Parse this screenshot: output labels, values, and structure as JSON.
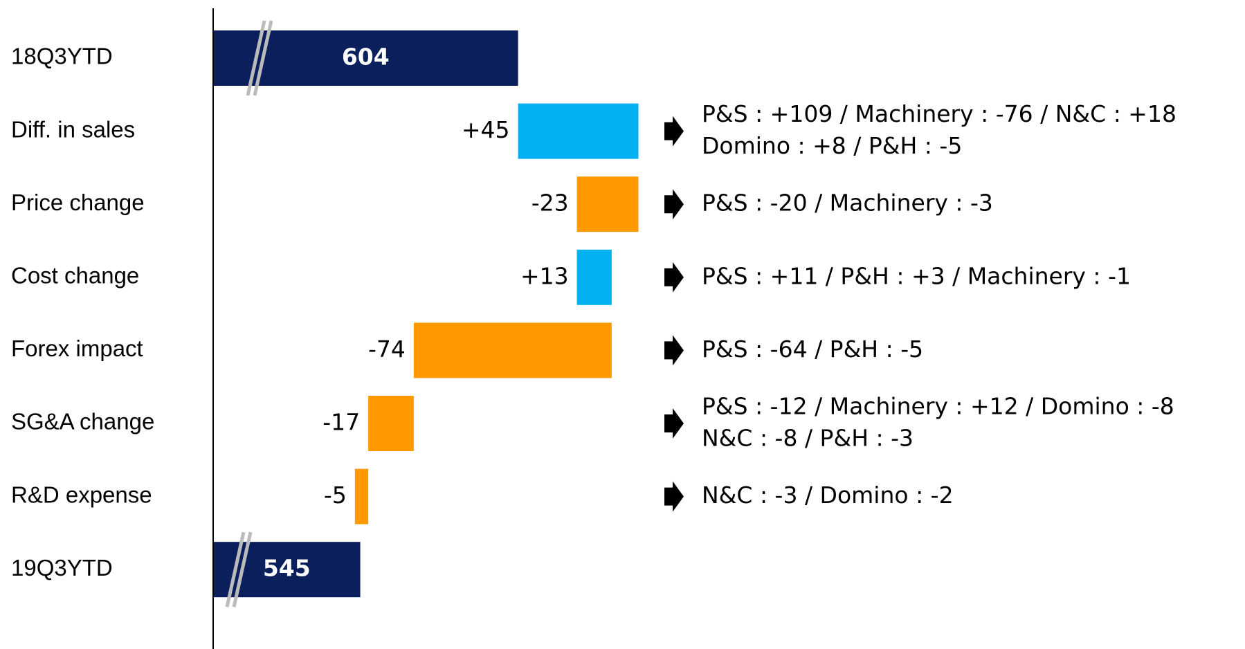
{
  "chart_data": {
    "type": "waterfall",
    "categories": [
      "18Q3YTD",
      "Diff. in sales",
      "Price change",
      "Cost change",
      "Forex impact",
      "SG&A change",
      "R&D expense",
      "19Q3YTD"
    ],
    "measure": [
      "total",
      "relative",
      "relative",
      "relative",
      "relative",
      "relative",
      "relative",
      "total"
    ],
    "values": [
      604,
      45,
      -23,
      13,
      -74,
      -17,
      -5,
      545
    ],
    "value_labels": [
      "604",
      "+45",
      "-23",
      "+13",
      "-74",
      "-17",
      "-5",
      "545"
    ],
    "colors": {
      "total": "#0b1f5c",
      "increase": "#00b0f0",
      "decrease": "#ff9900"
    },
    "xlim": [
      490,
      660
    ],
    "notes": [
      null,
      [
        "P&S : +109 / Machinery : -76 / N&C : +18",
        "Domino : +8 / P&H :  -5"
      ],
      [
        "P&S : -20 / Machinery : -3"
      ],
      [
        "P&S : +11 / P&H : +3 / Machinery : -1"
      ],
      [
        "P&S : -64 / P&H : -5"
      ],
      [
        "P&S : -12 / Machinery : +12 / Domino : -8",
        "N&C : -8 / P&H : -3"
      ],
      [
        "N&C : -3 / Domino : -2"
      ],
      null
    ]
  }
}
